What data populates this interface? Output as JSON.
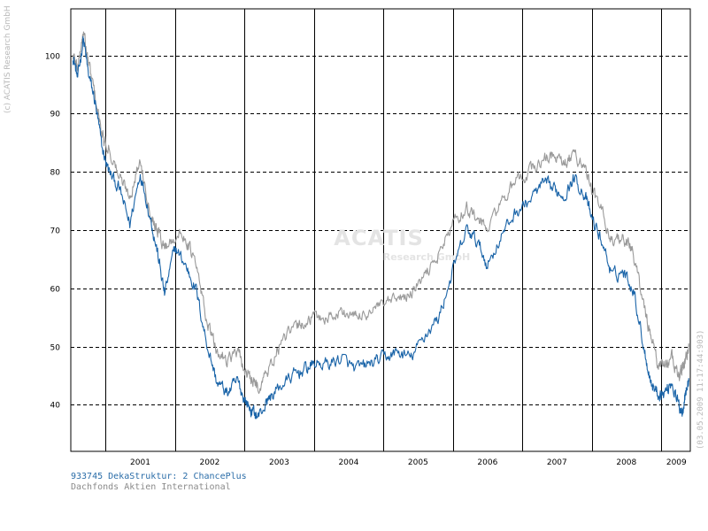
{
  "chart_data": {
    "type": "line",
    "title": "",
    "xlabel": "",
    "ylabel": "",
    "x_range": [
      2000.5,
      2009.42
    ],
    "ylim": [
      32,
      108
    ],
    "y_ticks": [
      40,
      50,
      60,
      70,
      80,
      90,
      100
    ],
    "x_tick_labels": [
      "2001",
      "2002",
      "2003",
      "2004",
      "2005",
      "2006",
      "2007",
      "2008",
      "2009"
    ],
    "grid": true,
    "x": [
      2000.53,
      2000.6,
      2000.68,
      2000.75,
      2000.85,
      2000.95,
      2001.05,
      2001.2,
      2001.35,
      2001.5,
      2001.65,
      2001.75,
      2001.85,
      2002.0,
      2002.15,
      2002.3,
      2002.45,
      2002.6,
      2002.75,
      2002.9,
      2003.0,
      2003.1,
      2003.2,
      2003.35,
      2003.5,
      2003.7,
      2003.85,
      2004.0,
      2004.2,
      2004.4,
      2004.6,
      2004.8,
      2005.0,
      2005.2,
      2005.4,
      2005.6,
      2005.8,
      2006.0,
      2006.2,
      2006.35,
      2006.5,
      2006.7,
      2006.9,
      2007.1,
      2007.3,
      2007.45,
      2007.6,
      2007.75,
      2007.9,
      2008.0,
      2008.15,
      2008.3,
      2008.45,
      2008.6,
      2008.75,
      2008.85,
      2008.95,
      2009.05,
      2009.15,
      2009.25,
      2009.3,
      2009.35,
      2009.4
    ],
    "series": [
      {
        "name": "933745 DekaStruktur: 2 ChancePlus",
        "color": "#1a64a8",
        "values": [
          100,
          96,
          103,
          97,
          92,
          84,
          80,
          77,
          71,
          80,
          72,
          66,
          59,
          67,
          64,
          60,
          51,
          44,
          42,
          44,
          41,
          39,
          38,
          41,
          43,
          45,
          46,
          47,
          47,
          48,
          46,
          47,
          48,
          49,
          48,
          52,
          55,
          63,
          70,
          68,
          64,
          69,
          73,
          75,
          78,
          77,
          76,
          79,
          76,
          72,
          68,
          62,
          63,
          60,
          50,
          44,
          42,
          42,
          44,
          40,
          39,
          42,
          44
        ]
      },
      {
        "name": "Dachfonds Aktien International",
        "color": "#9a9a9a",
        "values": [
          100,
          98,
          104,
          99,
          93,
          86,
          84,
          79,
          76,
          82,
          73,
          70,
          67,
          69,
          69,
          64,
          55,
          49,
          48,
          49,
          46,
          44,
          43,
          46,
          50,
          53,
          54,
          55,
          55,
          56,
          55,
          56,
          57,
          58,
          59,
          62,
          66,
          71,
          74,
          72,
          70,
          75,
          78,
          80,
          82,
          83,
          81,
          83,
          81,
          77,
          73,
          68,
          69,
          66,
          57,
          52,
          47,
          47,
          48,
          45,
          46,
          48,
          50
        ]
      }
    ],
    "watermark": "ACATIS Research GmbH"
  },
  "legend": {
    "line1": "933745 DekaStruktur: 2 ChancePlus",
    "line2": "Dachfonds Aktien International"
  },
  "side_text": {
    "copyright": "(c) ACATIS Research GmbH",
    "timestamp": "(03.05.2009 11:17:44:903)"
  }
}
